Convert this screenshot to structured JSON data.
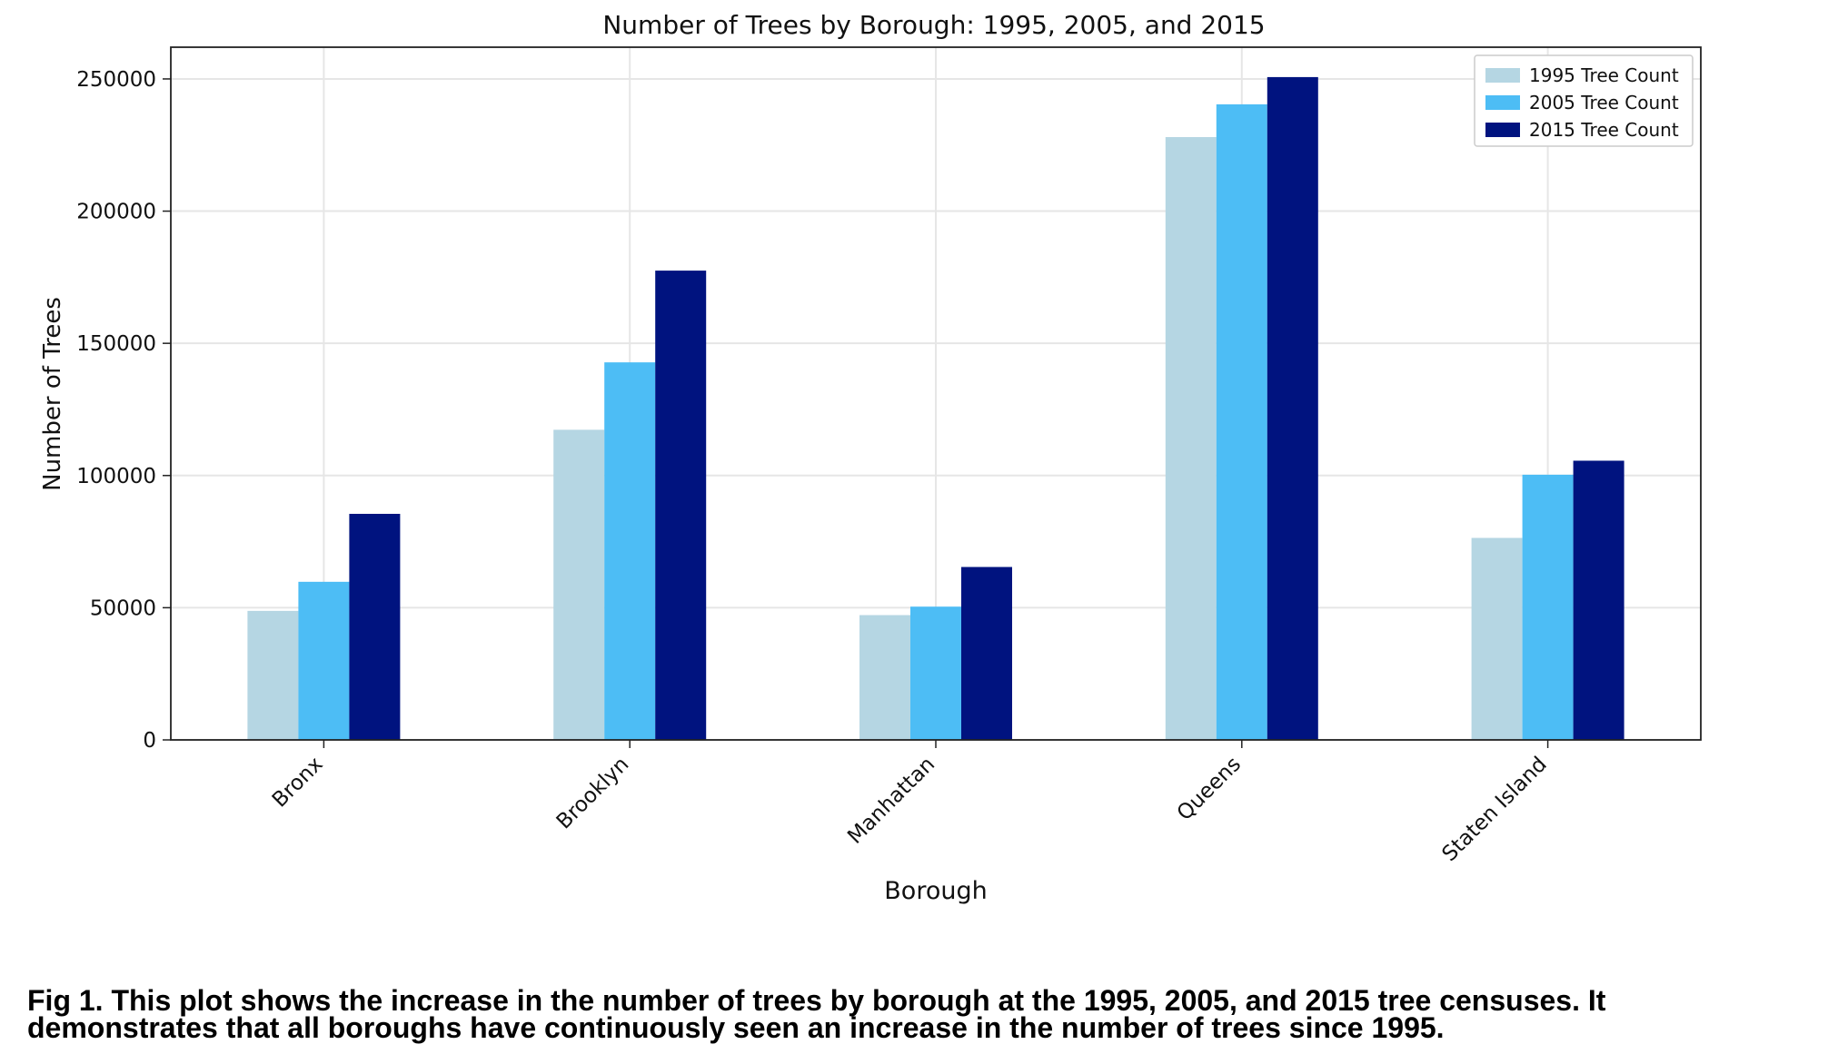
{
  "chart_data": {
    "type": "bar",
    "title": "Number of Trees by Borough: 1995, 2005, and 2015",
    "xlabel": "Borough",
    "ylabel": "Number of Trees",
    "categories": [
      "Bronx",
      "Brooklyn",
      "Manhattan",
      "Queens",
      "Staten Island"
    ],
    "series": [
      {
        "name": "1995 Tree Count",
        "color": "#b5d6e3",
        "values": [
          48800,
          117300,
          47200,
          228000,
          76400
        ]
      },
      {
        "name": "2005 Tree Count",
        "color": "#4dbdf5",
        "values": [
          59800,
          142800,
          50400,
          240400,
          100300
        ]
      },
      {
        "name": "2015 Tree Count",
        "color": "#00137f",
        "values": [
          85500,
          177500,
          65400,
          250700,
          105600
        ]
      }
    ],
    "ylim": [
      0,
      262000
    ],
    "yticks": [
      0,
      50000,
      100000,
      150000,
      200000,
      250000
    ],
    "ytick_labels": [
      "0",
      "50000",
      "100000",
      "150000",
      "200000",
      "250000"
    ],
    "grid": true,
    "legend_position": "top-right"
  },
  "caption": {
    "line1": "Fig 1. This plot shows the increase in the number of trees by borough at the 1995, 2005, and 2015 tree censuses. It",
    "line2": "demonstrates that all boroughs have continuously seen an increase in the number of trees since 1995."
  }
}
